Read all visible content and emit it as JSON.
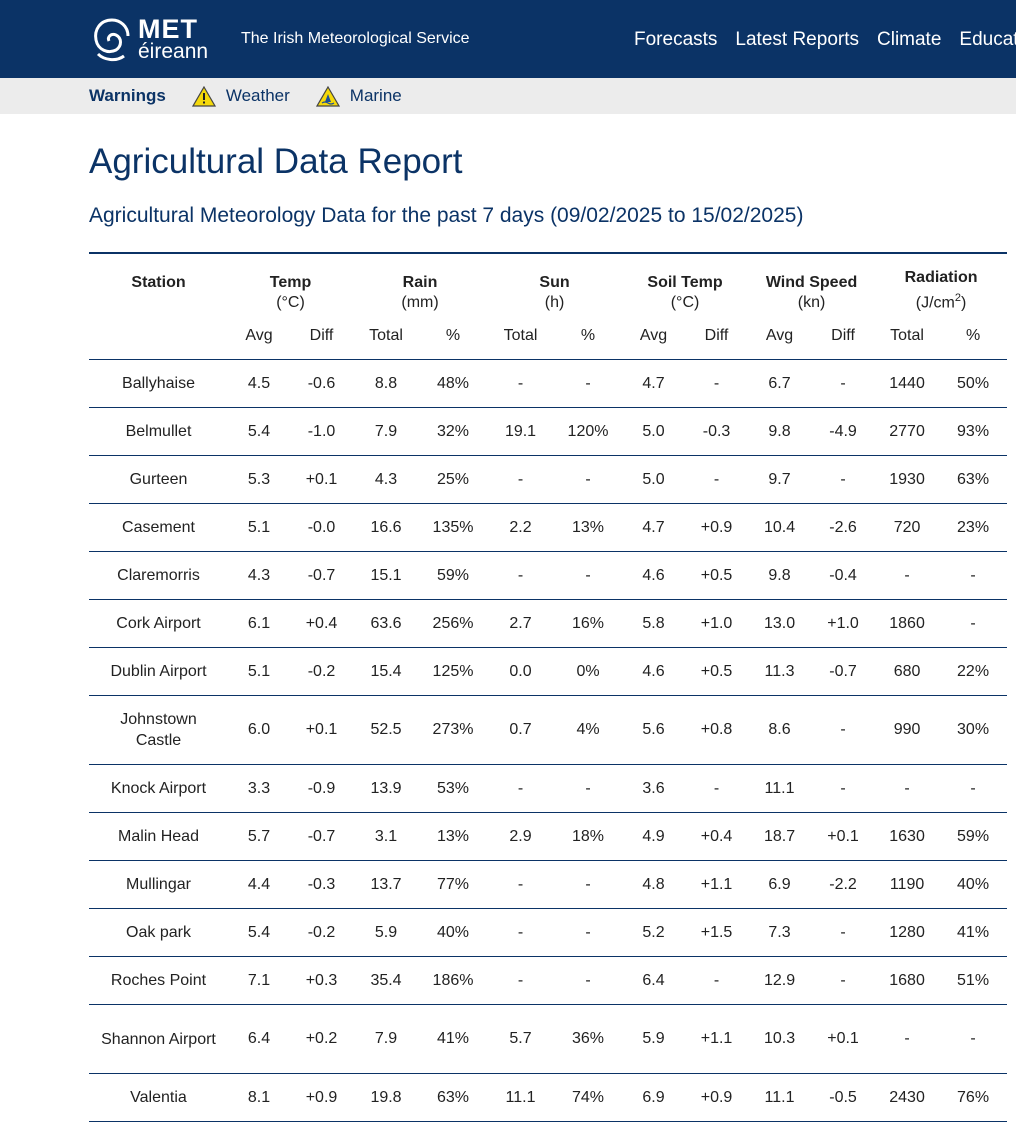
{
  "header": {
    "logo_met": "MET",
    "logo_eireann": "éireann",
    "tagline": "The Irish Meteorological Service",
    "nav": [
      "Forecasts",
      "Latest Reports",
      "Climate",
      "Educati"
    ]
  },
  "warnings": {
    "label": "Warnings",
    "items": [
      {
        "label": "Weather",
        "icon": "warning-triangle-icon"
      },
      {
        "label": "Marine",
        "icon": "marine-warning-icon"
      }
    ]
  },
  "page": {
    "title": "Agricultural Data Report",
    "subtitle": "Agricultural Meteorology Data for the past 7 days (09/02/2025 to 15/02/2025)"
  },
  "table": {
    "groups": [
      {
        "name": "Station",
        "unit": ""
      },
      {
        "name": "Temp",
        "unit": "(°C)"
      },
      {
        "name": "Rain",
        "unit": "(mm)"
      },
      {
        "name": "Sun",
        "unit": "(h)"
      },
      {
        "name": "Soil Temp",
        "unit": "(°C)"
      },
      {
        "name": "Wind Speed",
        "unit": "(kn)"
      },
      {
        "name": "Radiation",
        "unit": "(J/cm"
      }
    ],
    "radiation_unit_sup": "2",
    "radiation_unit_close": ")",
    "subheaders": [
      "",
      "Avg",
      "Diff",
      "Total",
      "%",
      "Total",
      "%",
      "Avg",
      "Diff",
      "Avg",
      "Diff",
      "Total",
      "%"
    ],
    "rows": [
      [
        "Ballyhaise",
        "4.5",
        "-0.6",
        "8.8",
        "48%",
        "-",
        "-",
        "4.7",
        "-",
        "6.7",
        "-",
        "1440",
        "50%"
      ],
      [
        "Belmullet",
        "5.4",
        "-1.0",
        "7.9",
        "32%",
        "19.1",
        "120%",
        "5.0",
        "-0.3",
        "9.8",
        "-4.9",
        "2770",
        "93%"
      ],
      [
        "Gurteen",
        "5.3",
        "+0.1",
        "4.3",
        "25%",
        "-",
        "-",
        "5.0",
        "-",
        "9.7",
        "-",
        "1930",
        "63%"
      ],
      [
        "Casement",
        "5.1",
        "-0.0",
        "16.6",
        "135%",
        "2.2",
        "13%",
        "4.7",
        "+0.9",
        "10.4",
        "-2.6",
        "720",
        "23%"
      ],
      [
        "Claremorris",
        "4.3",
        "-0.7",
        "15.1",
        "59%",
        "-",
        "-",
        "4.6",
        "+0.5",
        "9.8",
        "-0.4",
        "-",
        "-"
      ],
      [
        "Cork Airport",
        "6.1",
        "+0.4",
        "63.6",
        "256%",
        "2.7",
        "16%",
        "5.8",
        "+1.0",
        "13.0",
        "+1.0",
        "1860",
        "-"
      ],
      [
        "Dublin Airport",
        "5.1",
        "-0.2",
        "15.4",
        "125%",
        "0.0",
        "0%",
        "4.6",
        "+0.5",
        "11.3",
        "-0.7",
        "680",
        "22%"
      ],
      [
        "Johnstown Castle",
        "6.0",
        "+0.1",
        "52.5",
        "273%",
        "0.7",
        "4%",
        "5.6",
        "+0.8",
        "8.6",
        "-",
        "990",
        "30%"
      ],
      [
        "Knock Airport",
        "3.3",
        "-0.9",
        "13.9",
        "53%",
        "-",
        "-",
        "3.6",
        "-",
        "11.1",
        "-",
        "-",
        "-"
      ],
      [
        "Malin Head",
        "5.7",
        "-0.7",
        "3.1",
        "13%",
        "2.9",
        "18%",
        "4.9",
        "+0.4",
        "18.7",
        "+0.1",
        "1630",
        "59%"
      ],
      [
        "Mullingar",
        "4.4",
        "-0.3",
        "13.7",
        "77%",
        "-",
        "-",
        "4.8",
        "+1.1",
        "6.9",
        "-2.2",
        "1190",
        "40%"
      ],
      [
        "Oak park",
        "5.4",
        "-0.2",
        "5.9",
        "40%",
        "-",
        "-",
        "5.2",
        "+1.5",
        "7.3",
        "-",
        "1280",
        "41%"
      ],
      [
        "Roches Point",
        "7.1",
        "+0.3",
        "35.4",
        "186%",
        "-",
        "-",
        "6.4",
        "-",
        "12.9",
        "-",
        "1680",
        "51%"
      ],
      [
        "Shannon Airport",
        "6.4",
        "+0.2",
        "7.9",
        "41%",
        "5.7",
        "36%",
        "5.9",
        "+1.1",
        "10.3",
        "+0.1",
        "-",
        "-"
      ],
      [
        "Valentia",
        "8.1",
        "+0.9",
        "19.8",
        "63%",
        "11.1",
        "74%",
        "6.9",
        "+0.9",
        "11.1",
        "-0.5",
        "2430",
        "76%"
      ]
    ]
  },
  "colors": {
    "brand": "#0b3366",
    "warnbar": "#ececec",
    "warning_yellow": "#f5d90a"
  }
}
